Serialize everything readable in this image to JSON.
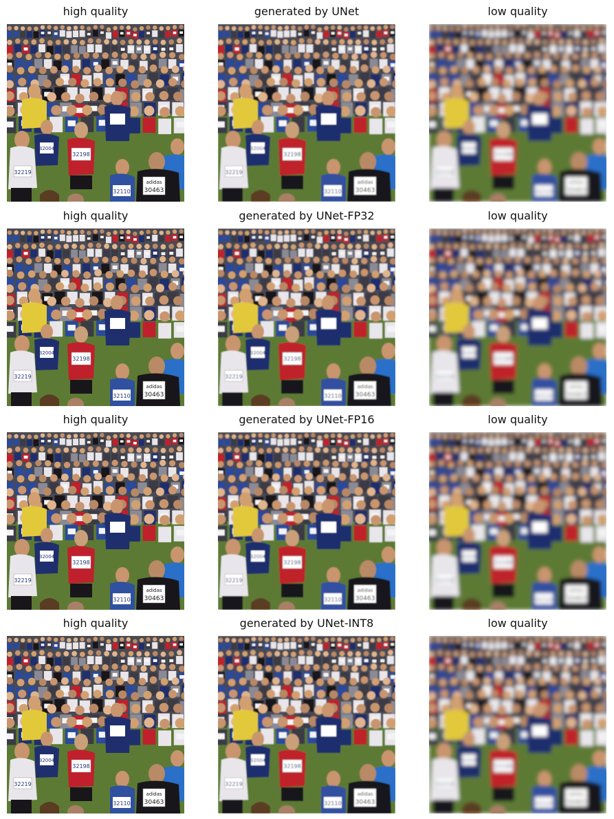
{
  "grid": {
    "rows": [
      {
        "cells": [
          {
            "title": "high quality",
            "image": "crowd-of-runners-photo",
            "quality": "sharp"
          },
          {
            "title": "generated by UNet",
            "image": "crowd-of-runners-photo",
            "quality": "generated"
          },
          {
            "title": "low quality",
            "image": "crowd-of-runners-photo",
            "quality": "blurry"
          }
        ]
      },
      {
        "cells": [
          {
            "title": "high quality",
            "image": "crowd-of-runners-photo",
            "quality": "sharp"
          },
          {
            "title": "generated by UNet-FP32",
            "image": "crowd-of-runners-photo",
            "quality": "generated"
          },
          {
            "title": "low quality",
            "image": "crowd-of-runners-photo",
            "quality": "blurry"
          }
        ]
      },
      {
        "cells": [
          {
            "title": "high quality",
            "image": "crowd-of-runners-photo",
            "quality": "sharp"
          },
          {
            "title": "generated by UNet-FP16",
            "image": "crowd-of-runners-photo",
            "quality": "generated"
          },
          {
            "title": "low quality",
            "image": "crowd-of-runners-photo",
            "quality": "blurry"
          }
        ]
      },
      {
        "cells": [
          {
            "title": "high quality",
            "image": "crowd-of-runners-photo",
            "quality": "sharp"
          },
          {
            "title": "generated by UNet-INT8",
            "image": "crowd-of-runners-photo",
            "quality": "generated"
          },
          {
            "title": "low quality",
            "image": "crowd-of-runners-photo",
            "quality": "blurry"
          }
        ]
      }
    ]
  },
  "bib_numbers": [
    "32219",
    "32198",
    "32110",
    "30463",
    "32004"
  ],
  "bib_brand": "adidas",
  "colors": {
    "grass": "#5d7a34",
    "red_shirt": "#c0202c",
    "navy_shirt": "#1f2f6e",
    "yellow_shirt": "#e2c93a",
    "white_shirt": "#e8e6ea",
    "black_shirt": "#18161a",
    "skin": "#c9956e"
  }
}
